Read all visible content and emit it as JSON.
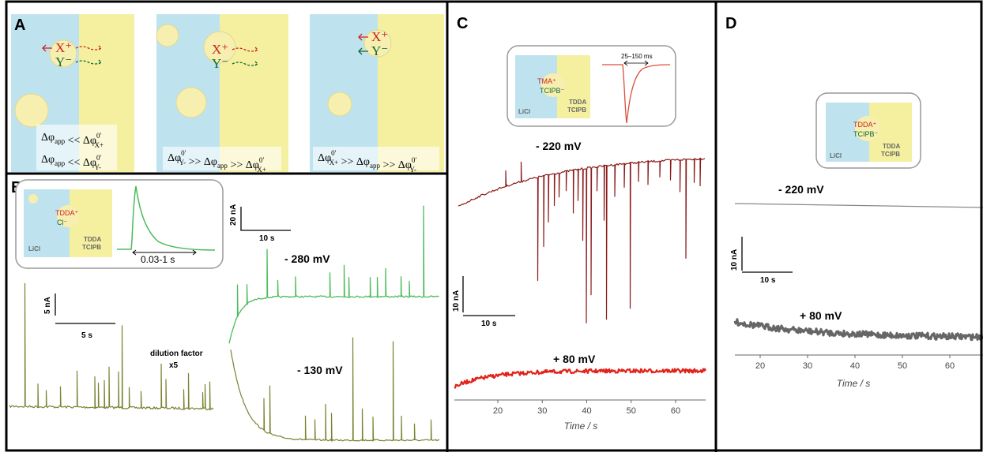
{
  "panel_a": {
    "label": "A",
    "cation": "X⁺",
    "anion": "Y⁻",
    "conditions": [
      [
        {
          "base": "Δφ",
          "sub": "app"
        },
        {
          "base": " << Δφ",
          "sup": "0′",
          "sub": "X+"
        }
      ],
      [
        {
          "base": "Δφ",
          "sub": "app"
        },
        {
          "base": " << Δφ",
          "sup": "0′",
          "sub": "Y-"
        }
      ],
      [
        {
          "base": "Δφ",
          "sup": "0′",
          "sub": "Y-"
        },
        {
          "base": " >> Δφ",
          "sub": "app"
        },
        {
          "base": " >> Δφ",
          "sup": "0′",
          "sub": "X+"
        }
      ],
      [
        {
          "base": "Δφ",
          "sup": "0′",
          "sub": "X+"
        },
        {
          "base": " >> Δφ",
          "sub": "app"
        },
        {
          "base": " >> Δφ",
          "sup": "0′",
          "sub": "Y-"
        }
      ]
    ]
  },
  "panel_b": {
    "label": "B",
    "inset": {
      "cation": "TDDA⁺",
      "anion": "Cl⁻",
      "aqueous": "LiCl",
      "organic_1": "TDDA",
      "organic_2": "TCIPB",
      "duration": "0.03-1 s"
    },
    "scale_right": {
      "current": "20 nA",
      "time": "10 s"
    },
    "scale_left": {
      "current": "5 nA",
      "time": "5 s"
    },
    "potential_1": "- 280 mV",
    "potential_2": "- 130 mV",
    "note_1": "dilution factor",
    "note_2": "x5"
  },
  "panel_c": {
    "label": "C",
    "inset": {
      "cation": "TMA⁺",
      "anion": "TCIPB⁻",
      "aqueous": "LiCl",
      "organic_1": "TDDA",
      "organic_2": "TCIPB",
      "duration": "25–150 ms"
    },
    "potential_1": "- 220  mV",
    "potential_2": "+ 80  mV",
    "scale": {
      "current": "10 nA",
      "time": "10 s"
    },
    "xticks": [
      20,
      30,
      40,
      50,
      60
    ],
    "xlabel": "Time  /  s"
  },
  "panel_d": {
    "label": "D",
    "inset": {
      "cation": "TDDA⁺",
      "anion": "TCIPB⁻",
      "aqueous": "LiCl",
      "organic_1": "TDDA",
      "organic_2": "TCIPB"
    },
    "potential_1": "- 220  mV",
    "potential_2": "+ 80  mV",
    "scale": {
      "current": "10 nA",
      "time": "10 s"
    },
    "xticks": [
      20,
      30,
      40,
      50,
      60
    ],
    "xlabel": "Time  /  s"
  }
}
